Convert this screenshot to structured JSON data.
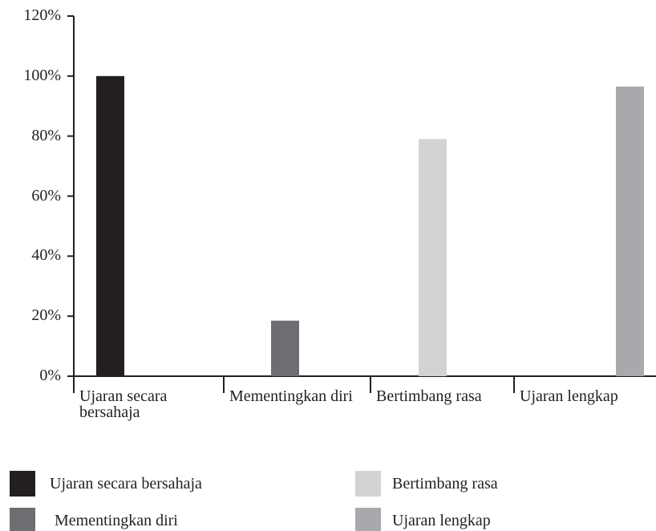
{
  "chart_data": {
    "type": "bar",
    "categories": [
      "Ujaran secara bersahaja",
      "Mementingkan diri",
      "Bertimbang rasa",
      "Ujaran lengkap"
    ],
    "values": [
      100,
      18.5,
      79,
      96.5
    ],
    "colors": [
      "#231f20",
      "#6d6e71",
      "#d1d3d4",
      "#a7a9ac"
    ],
    "ylim": [
      0,
      120
    ],
    "yticks": [
      {
        "value": 0,
        "label": "0%"
      },
      {
        "value": 20,
        "label": "20%"
      },
      {
        "value": 40,
        "label": "40%"
      },
      {
        "value": 60,
        "label": "60%"
      },
      {
        "value": 80,
        "label": "80%"
      },
      {
        "value": 100,
        "label": "100%"
      },
      {
        "value": 120,
        "label": "120%"
      }
    ],
    "legend": "bottom"
  }
}
